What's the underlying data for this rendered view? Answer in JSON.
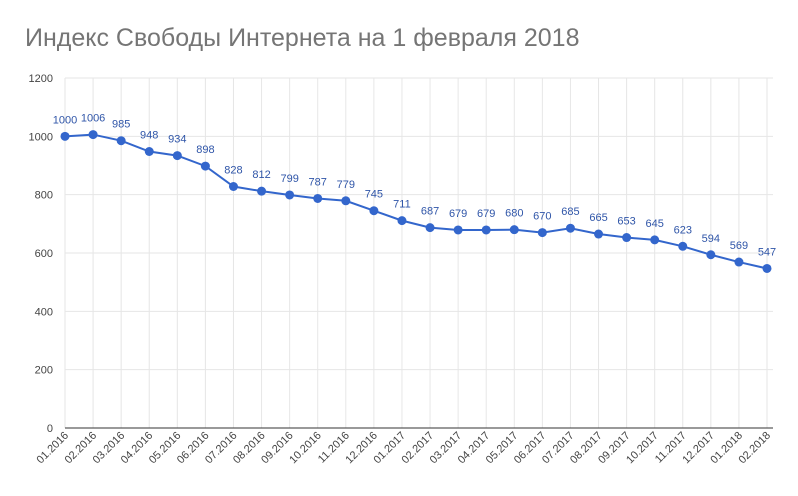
{
  "chart_data": {
    "type": "line",
    "title": "Индекс Свободы Интернета на 1 февраля 2018",
    "xlabel": "",
    "ylabel": "",
    "x": [
      "01.2016",
      "02.2016",
      "03.2016",
      "04.2016",
      "05.2016",
      "06.2016",
      "07.2016",
      "08.2016",
      "09.2016",
      "10.2016",
      "11.2016",
      "12.2016",
      "01.2017",
      "02.2017",
      "03.2017",
      "04.2017",
      "05.2017",
      "06.2017",
      "07.2017",
      "08.2017",
      "09.2017",
      "10.2017",
      "11.2017",
      "12.2017",
      "01.2018",
      "02.2018"
    ],
    "values": [
      1000,
      1006,
      985,
      948,
      934,
      898,
      828,
      812,
      799,
      787,
      779,
      745,
      711,
      687,
      679,
      679,
      680,
      670,
      685,
      665,
      653,
      645,
      623,
      594,
      569,
      547
    ],
    "ylim": [
      0,
      1200
    ],
    "yticks": [
      0,
      200,
      400,
      600,
      800,
      1000,
      1200
    ],
    "grid": true,
    "legend": "none",
    "colors": {
      "line": "#3366cc",
      "label": "#2f55a8",
      "grid": "#e6e6e6",
      "title": "#757575"
    }
  }
}
